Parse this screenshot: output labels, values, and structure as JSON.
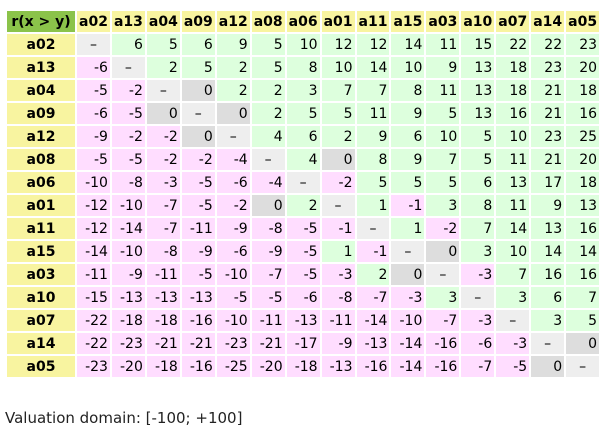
{
  "corner_label": "r(x > y)",
  "columns": [
    "a02",
    "a13",
    "a04",
    "a09",
    "a12",
    "a08",
    "a06",
    "a01",
    "a11",
    "a15",
    "a03",
    "a10",
    "a07",
    "a14",
    "a05"
  ],
  "rows": [
    {
      "label": "a02",
      "values": [
        "–",
        "6",
        "5",
        "6",
        "9",
        "5",
        "10",
        "12",
        "12",
        "14",
        "11",
        "15",
        "22",
        "22",
        "23"
      ]
    },
    {
      "label": "a13",
      "values": [
        "-6",
        "–",
        "2",
        "5",
        "2",
        "5",
        "8",
        "10",
        "14",
        "10",
        "9",
        "13",
        "18",
        "23",
        "20"
      ]
    },
    {
      "label": "a04",
      "values": [
        "-5",
        "-2",
        "–",
        "0",
        "2",
        "2",
        "3",
        "7",
        "7",
        "8",
        "11",
        "13",
        "18",
        "21",
        "18"
      ]
    },
    {
      "label": "a09",
      "values": [
        "-6",
        "-5",
        "0",
        "–",
        "0",
        "2",
        "5",
        "5",
        "11",
        "9",
        "5",
        "13",
        "16",
        "21",
        "16"
      ]
    },
    {
      "label": "a12",
      "values": [
        "-9",
        "-2",
        "-2",
        "0",
        "–",
        "4",
        "6",
        "2",
        "9",
        "6",
        "10",
        "5",
        "10",
        "23",
        "25"
      ]
    },
    {
      "label": "a08",
      "values": [
        "-5",
        "-5",
        "-2",
        "-2",
        "-4",
        "–",
        "4",
        "0",
        "8",
        "9",
        "7",
        "5",
        "11",
        "21",
        "20"
      ]
    },
    {
      "label": "a06",
      "values": [
        "-10",
        "-8",
        "-3",
        "-5",
        "-6",
        "-4",
        "–",
        "-2",
        "5",
        "5",
        "5",
        "6",
        "13",
        "17",
        "18"
      ]
    },
    {
      "label": "a01",
      "values": [
        "-12",
        "-10",
        "-7",
        "-5",
        "-2",
        "0",
        "2",
        "–",
        "1",
        "-1",
        "3",
        "8",
        "11",
        "9",
        "13"
      ]
    },
    {
      "label": "a11",
      "values": [
        "-12",
        "-14",
        "-7",
        "-11",
        "-9",
        "-8",
        "-5",
        "-1",
        "–",
        "1",
        "-2",
        "7",
        "14",
        "13",
        "16"
      ]
    },
    {
      "label": "a15",
      "values": [
        "-14",
        "-10",
        "-8",
        "-9",
        "-6",
        "-9",
        "-5",
        "1",
        "-1",
        "–",
        "0",
        "3",
        "10",
        "14",
        "14"
      ]
    },
    {
      "label": "a03",
      "values": [
        "-11",
        "-9",
        "-11",
        "-5",
        "-10",
        "-7",
        "-5",
        "-3",
        "2",
        "0",
        "–",
        "-3",
        "7",
        "16",
        "16"
      ]
    },
    {
      "label": "a10",
      "values": [
        "-15",
        "-13",
        "-13",
        "-13",
        "-5",
        "-5",
        "-6",
        "-8",
        "-7",
        "-3",
        "3",
        "–",
        "3",
        "6",
        "7"
      ]
    },
    {
      "label": "a07",
      "values": [
        "-22",
        "-18",
        "-18",
        "-16",
        "-10",
        "-11",
        "-13",
        "-11",
        "-14",
        "-10",
        "-7",
        "-3",
        "–",
        "3",
        "5"
      ]
    },
    {
      "label": "a14",
      "values": [
        "-22",
        "-23",
        "-21",
        "-21",
        "-23",
        "-21",
        "-17",
        "-9",
        "-13",
        "-14",
        "-16",
        "-6",
        "-3",
        "–",
        "0"
      ]
    },
    {
      "label": "a05",
      "values": [
        "-23",
        "-20",
        "-18",
        "-16",
        "-25",
        "-20",
        "-18",
        "-13",
        "-16",
        "-14",
        "-16",
        "-7",
        "-5",
        "0",
        "–"
      ]
    }
  ],
  "footer": "Valuation domain: [-100; +100]",
  "colors": {
    "corner": "#8bc34a",
    "header": "#f8f4a0",
    "positive": "#ddffdd",
    "negative": "#ffddff",
    "zero": "#dddddd",
    "diagonal": "#eeeeee"
  }
}
